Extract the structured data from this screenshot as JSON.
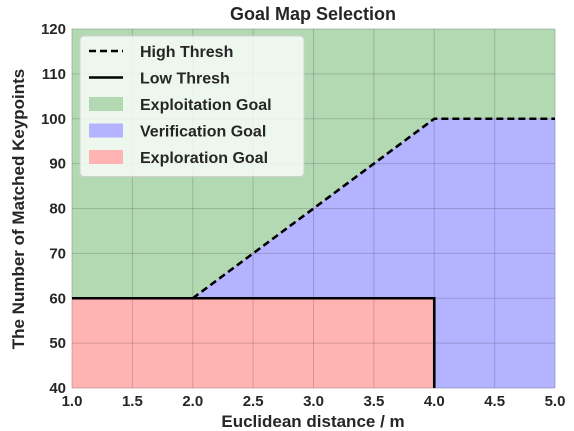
{
  "chart_data": {
    "type": "area",
    "title": "Goal Map Selection",
    "xlabel": "Euclidean distance / m",
    "ylabel": "The Number of Matched Keypoints",
    "xlim": [
      1.0,
      5.0
    ],
    "ylim": [
      40,
      120
    ],
    "x_ticks": [
      "1.0",
      "1.5",
      "2.0",
      "2.5",
      "3.0",
      "3.5",
      "4.0",
      "4.5",
      "5.0"
    ],
    "y_ticks": [
      "40",
      "50",
      "60",
      "70",
      "80",
      "90",
      "100",
      "110",
      "120"
    ],
    "grid": true,
    "legend_position": "top-left",
    "series": [
      {
        "name": "High Thresh",
        "kind": "line",
        "style": "dashed",
        "color": "#000000",
        "x": [
          2.0,
          4.0,
          5.0
        ],
        "y": [
          60,
          100,
          100
        ]
      },
      {
        "name": "Low Thresh",
        "kind": "line",
        "style": "solid",
        "color": "#000000",
        "x": [
          1.0,
          4.0,
          4.0
        ],
        "y": [
          60,
          60,
          40
        ]
      },
      {
        "name": "Exploitation Goal",
        "kind": "region",
        "color": "#b3d9b3",
        "x": [
          1.0,
          5.0,
          5.0,
          4.0,
          2.0,
          1.0
        ],
        "y": [
          120,
          120,
          100,
          100,
          60,
          60
        ]
      },
      {
        "name": "Verification Goal",
        "kind": "region",
        "color": "#b3b3ff",
        "x": [
          2.0,
          4.0,
          5.0,
          5.0,
          4.0,
          4.0
        ],
        "y": [
          60,
          100,
          100,
          40,
          40,
          60
        ]
      },
      {
        "name": "Exploration Goal",
        "kind": "region",
        "color": "#ffb3b3",
        "x": [
          1.0,
          4.0,
          4.0,
          1.0
        ],
        "y": [
          60,
          60,
          40,
          40
        ]
      }
    ]
  }
}
